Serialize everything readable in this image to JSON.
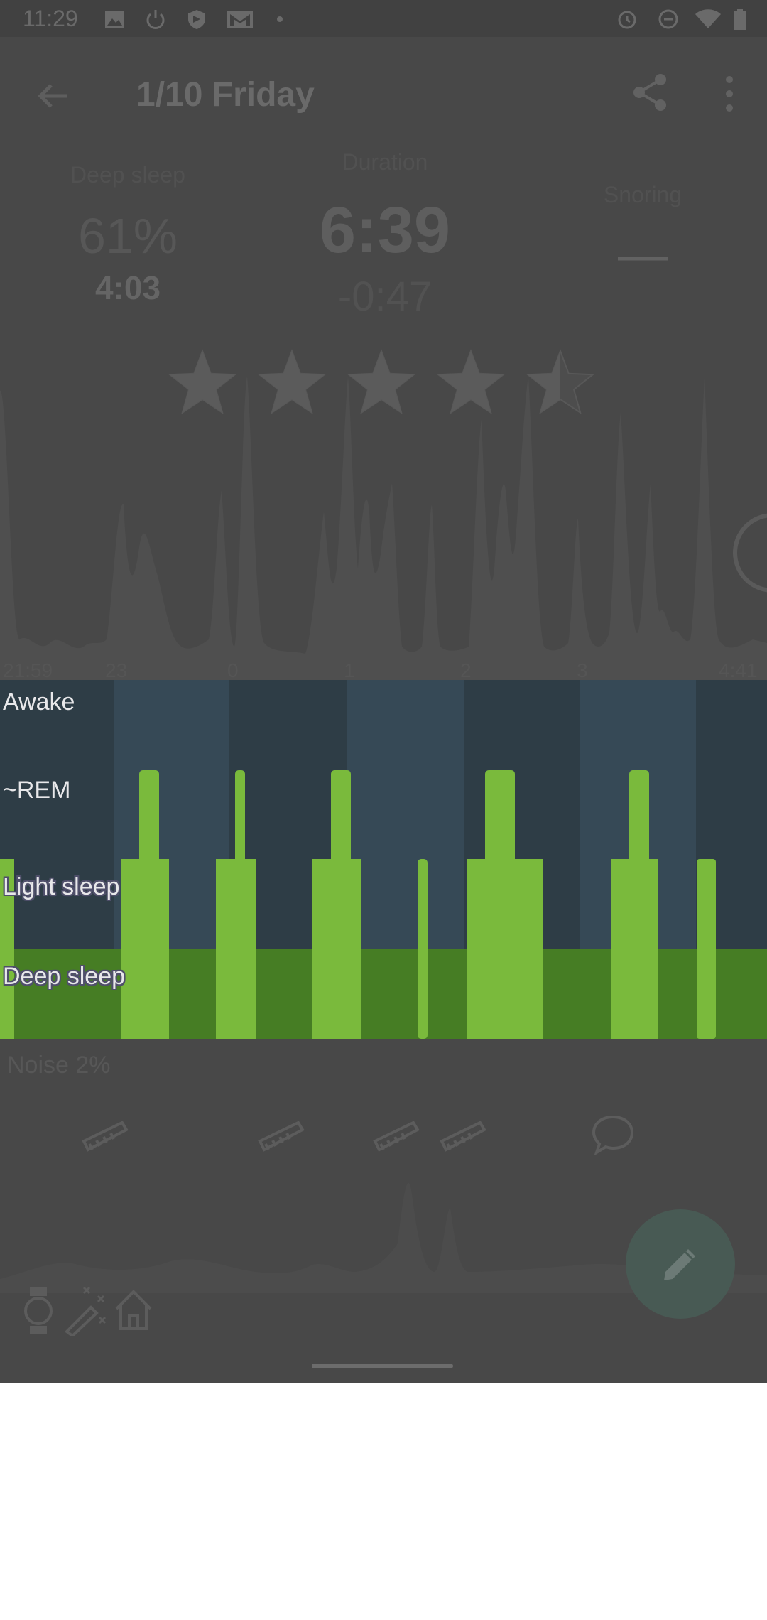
{
  "status_bar": {
    "time": "11:29",
    "left_icons": [
      "image-icon",
      "power-icon",
      "shield-icon",
      "gmail-icon",
      "dot-icon"
    ],
    "right_icons": [
      "alarm-icon",
      "dnd-icon",
      "wifi-icon",
      "battery-icon"
    ]
  },
  "app_bar": {
    "title": "1/10 Friday",
    "back_icon": "back-arrow-icon",
    "share_icon": "share-icon",
    "more_icon": "more-vert-icon"
  },
  "metrics": {
    "deep_sleep": {
      "label": "Deep sleep",
      "percent": "61%",
      "time": "4:03"
    },
    "duration": {
      "label": "Duration",
      "value": "6:39",
      "delta": "-0:47"
    },
    "snoring": {
      "label": "Snoring",
      "value": "—"
    }
  },
  "rating": {
    "stars": 4.5,
    "max": 5
  },
  "timeline": {
    "start": "21:59",
    "ticks": [
      "23",
      "0",
      "1",
      "2",
      "3"
    ],
    "end": "4:41"
  },
  "hypnogram": {
    "stages": [
      "Awake",
      "~REM",
      "Light sleep",
      "Deep sleep"
    ],
    "colors": {
      "deep": "#467d24",
      "bar": "#7aba3c",
      "band_dark": "#2e3d46",
      "band_light": "#364956"
    }
  },
  "noise": {
    "label": "Noise 2%"
  },
  "bottom_icons": [
    "watch-icon",
    "magic-wand-icon",
    "home-icon"
  ],
  "fab_icon": "edit-pencil-icon"
}
